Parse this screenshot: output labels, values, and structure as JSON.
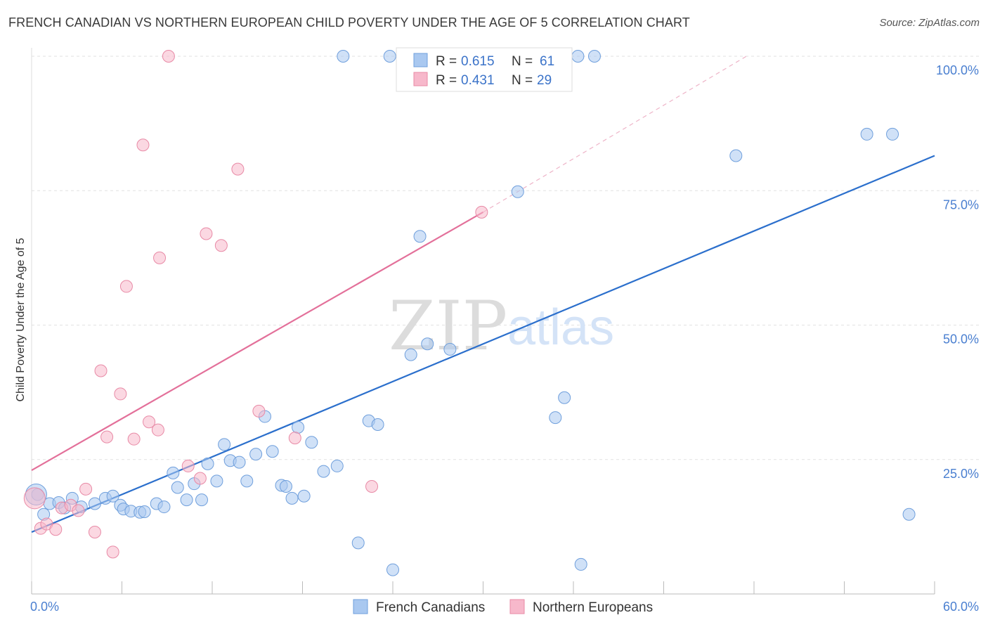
{
  "title": "FRENCH CANADIAN VS NORTHERN EUROPEAN CHILD POVERTY UNDER THE AGE OF 5 CORRELATION CHART",
  "source": "Source: ZipAtlas.com",
  "watermark": {
    "zip": "ZIP",
    "atlas": "atlas"
  },
  "legend_stats": [
    {
      "r_label": "R =",
      "r_value": "0.615",
      "n_label": "N =",
      "n_value": "61",
      "color": "#a9c8f0"
    },
    {
      "r_label": "R =",
      "r_value": "0.431",
      "n_label": "N =",
      "n_value": "29",
      "color": "#f7b8cb"
    }
  ],
  "chart_data": {
    "type": "scatter",
    "title": "FRENCH CANADIAN VS NORTHERN EUROPEAN CHILD POVERTY UNDER THE AGE OF 5 CORRELATION CHART",
    "ylabel": "Child Poverty Under the Age of 5",
    "xlabel": "",
    "xlim": [
      0,
      60
    ],
    "ylim": [
      0,
      100
    ],
    "x_tick_labels": [
      "0.0%",
      "60.0%"
    ],
    "y_ticks": [
      {
        "value": 25,
        "label": "25.0%"
      },
      {
        "value": 50,
        "label": "50.0%"
      },
      {
        "value": 75,
        "label": "75.0%"
      },
      {
        "value": 100,
        "label": "100.0%"
      }
    ],
    "grid": true,
    "legend_position": "bottom",
    "series": [
      {
        "name": "French Canadians",
        "color": "#a9c8f0",
        "stroke": "#6f9fdc",
        "trend_color": "#2b6fcc",
        "trend": {
          "x0": 0,
          "y0": 11.5,
          "x1": 60,
          "y1": 81.5,
          "dashed_extension": false
        },
        "points": [
          [
            0.4,
            18.5
          ],
          [
            0.8,
            14.8
          ],
          [
            1.2,
            16.8
          ],
          [
            1.8,
            17.0
          ],
          [
            2.2,
            16.0
          ],
          [
            2.7,
            17.8
          ],
          [
            3.3,
            16.2
          ],
          [
            4.2,
            16.8
          ],
          [
            4.9,
            17.8
          ],
          [
            5.4,
            18.2
          ],
          [
            5.9,
            16.5
          ],
          [
            6.1,
            15.8
          ],
          [
            6.6,
            15.4
          ],
          [
            7.2,
            15.2
          ],
          [
            7.5,
            15.3
          ],
          [
            8.3,
            16.8
          ],
          [
            8.8,
            16.2
          ],
          [
            9.4,
            22.5
          ],
          [
            9.7,
            19.8
          ],
          [
            10.3,
            17.5
          ],
          [
            10.8,
            20.5
          ],
          [
            11.3,
            17.5
          ],
          [
            11.7,
            24.2
          ],
          [
            12.3,
            21.0
          ],
          [
            12.8,
            27.8
          ],
          [
            13.2,
            24.8
          ],
          [
            13.8,
            24.5
          ],
          [
            14.3,
            21.0
          ],
          [
            14.9,
            26.0
          ],
          [
            15.5,
            33.0
          ],
          [
            16.0,
            26.5
          ],
          [
            16.6,
            20.2
          ],
          [
            16.9,
            20.0
          ],
          [
            17.3,
            17.8
          ],
          [
            17.7,
            31.0
          ],
          [
            18.1,
            18.2
          ],
          [
            18.6,
            28.2
          ],
          [
            19.4,
            22.8
          ],
          [
            20.3,
            23.8
          ],
          [
            20.7,
            100.0
          ],
          [
            21.7,
            9.5
          ],
          [
            22.4,
            32.2
          ],
          [
            23.0,
            31.5
          ],
          [
            23.8,
            100.0
          ],
          [
            24.0,
            4.5
          ],
          [
            25.2,
            44.5
          ],
          [
            25.8,
            66.5
          ],
          [
            26.3,
            46.5
          ],
          [
            27.8,
            45.5
          ],
          [
            29.1,
            100.0
          ],
          [
            32.3,
            74.8
          ],
          [
            34.8,
            32.8
          ],
          [
            35.4,
            36.5
          ],
          [
            36.3,
            100.0
          ],
          [
            36.5,
            5.5
          ],
          [
            37.4,
            100.0
          ],
          [
            46.8,
            81.5
          ],
          [
            55.5,
            85.5
          ],
          [
            57.2,
            85.5
          ],
          [
            58.3,
            14.8
          ]
        ],
        "big_point": [
          0.3,
          18.5
        ]
      },
      {
        "name": "Northern Europeans",
        "color": "#f7b8cb",
        "stroke": "#e88aa6",
        "trend_color": "#e3709a",
        "trend": {
          "x0": 0,
          "y0": 23.0,
          "x1": 30.0,
          "y1": 71.0,
          "dashed_to_x": 47.5,
          "dashed_to_y": 100.0
        },
        "points": [
          [
            0.6,
            12.2
          ],
          [
            1.0,
            13.0
          ],
          [
            1.6,
            12.0
          ],
          [
            2.0,
            16.0
          ],
          [
            2.6,
            16.5
          ],
          [
            3.1,
            15.5
          ],
          [
            3.6,
            19.5
          ],
          [
            4.2,
            11.5
          ],
          [
            4.6,
            41.5
          ],
          [
            5.0,
            29.2
          ],
          [
            5.4,
            7.8
          ],
          [
            5.9,
            37.2
          ],
          [
            6.3,
            57.2
          ],
          [
            6.8,
            28.8
          ],
          [
            7.4,
            83.5
          ],
          [
            7.8,
            32.0
          ],
          [
            8.4,
            30.5
          ],
          [
            8.5,
            62.5
          ],
          [
            9.1,
            100.0
          ],
          [
            10.4,
            23.8
          ],
          [
            11.2,
            21.5
          ],
          [
            11.6,
            67.0
          ],
          [
            12.6,
            64.8
          ],
          [
            13.7,
            79.0
          ],
          [
            15.1,
            34.0
          ],
          [
            17.5,
            29.0
          ],
          [
            22.6,
            20.0
          ],
          [
            29.9,
            71.0
          ]
        ],
        "big_point": [
          0.2,
          17.8
        ]
      }
    ]
  }
}
